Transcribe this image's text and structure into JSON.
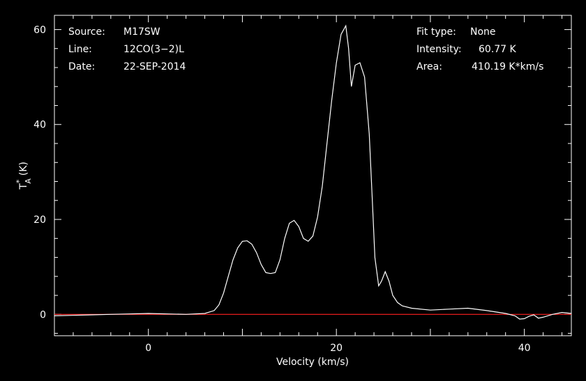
{
  "chart_data": {
    "type": "line",
    "xlabel": "Velocity (km/s)",
    "ylabel_main": "T",
    "ylabel_sup": "*",
    "ylabel_sub": "A",
    "ylabel_unit": "(K)",
    "xlim": [
      -10,
      45
    ],
    "ylim": [
      -4.5,
      63
    ],
    "x_ticks": [
      0,
      20,
      40
    ],
    "y_ticks": [
      0,
      20,
      40,
      60
    ],
    "x_tick_labels": [
      "0",
      "20",
      "40"
    ],
    "y_tick_labels": [
      "0",
      "20",
      "40",
      "60"
    ],
    "baseline": {
      "y": 0,
      "color": "#ff2020"
    },
    "line_color": "#ffffff",
    "series": [
      {
        "values_desc": "",
        "x": [
          -10,
          -8,
          -6,
          -4,
          -2,
          0,
          2,
          4,
          6,
          7,
          7.5,
          8,
          8.5,
          9,
          9.5,
          10,
          10.5,
          11,
          11.5,
          12,
          12.5,
          13,
          13.5,
          14,
          14.5,
          15,
          15.5,
          16,
          16.5,
          17,
          17.5,
          18,
          18.5,
          19,
          19.5,
          20,
          20.5,
          21,
          21.3,
          21.6,
          22,
          22.5,
          23,
          23.5,
          23.8,
          24.1,
          24.5,
          24.8,
          25.2,
          25.6,
          26,
          26.5,
          27,
          28,
          30,
          32,
          34,
          36,
          38,
          39,
          39.5,
          40,
          40.5,
          41,
          41.5,
          42,
          43,
          44,
          45
        ],
        "y": [
          -0.3,
          -0.2,
          -0.1,
          0.0,
          0.1,
          0.2,
          0.1,
          0.0,
          0.2,
          0.8,
          2.0,
          4.5,
          8.0,
          11.5,
          14.0,
          15.4,
          15.5,
          14.8,
          13.0,
          10.5,
          8.8,
          8.6,
          8.8,
          11.5,
          16.0,
          19.2,
          19.8,
          18.5,
          16.0,
          15.4,
          16.5,
          20.5,
          27.0,
          36.0,
          45.0,
          53.0,
          59.0,
          60.8,
          56.0,
          48.0,
          52.5,
          53.0,
          50.0,
          38.0,
          25.0,
          12.0,
          6.0,
          7.0,
          9.0,
          7.0,
          4.0,
          2.5,
          1.8,
          1.3,
          0.9,
          1.1,
          1.3,
          0.8,
          0.2,
          -0.3,
          -1.0,
          -0.9,
          -0.4,
          -0.1,
          -0.8,
          -0.6,
          0.0,
          0.4,
          0.2
        ]
      }
    ]
  },
  "info_left": {
    "source_label": "Source:",
    "source_value": "M17SW",
    "line_label": "Line:",
    "line_value": "12CO(3−2)L",
    "date_label": "Date:",
    "date_value": "22-SEP-2014"
  },
  "info_right": {
    "fit_label": "Fit type:",
    "fit_value": "None",
    "intensity_label": "Intensity:",
    "intensity_value": "60.77 K",
    "area_label": "Area:",
    "area_value": "410.19 K*km/s"
  }
}
